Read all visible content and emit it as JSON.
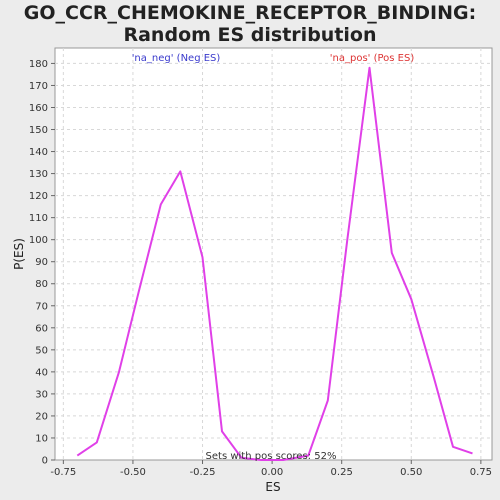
{
  "title": "GO_CCR_CHEMOKINE_RECEPTOR_BINDING: Random ES distribution",
  "chart_data": {
    "type": "line",
    "title": "GO_CCR_CHEMOKINE_RECEPTOR_BINDING: Random ES distribution",
    "xlabel": "ES",
    "ylabel": "P(ES)",
    "xlim": [
      -0.78,
      0.79
    ],
    "ylim": [
      0,
      187
    ],
    "xticks": [
      -0.75,
      -0.5,
      -0.25,
      0.0,
      0.25,
      0.5,
      0.75
    ],
    "xtick_labels": [
      "-0.75",
      "-0.50",
      "-0.25",
      "0.00",
      "0.25",
      "0.50",
      "0.75"
    ],
    "yticks": [
      0,
      10,
      20,
      30,
      40,
      50,
      60,
      70,
      80,
      90,
      100,
      110,
      120,
      130,
      140,
      150,
      160,
      170,
      180
    ],
    "grid": true,
    "series": [
      {
        "color": "#e040e8",
        "x": [
          -0.7,
          -0.63,
          -0.55,
          -0.48,
          -0.4,
          -0.33,
          -0.25,
          -0.18,
          -0.11,
          -0.04,
          0.04,
          0.13,
          0.2,
          0.27,
          0.35,
          0.43,
          0.5,
          0.58,
          0.65,
          0.72
        ],
        "y": [
          2,
          8,
          40,
          76,
          116,
          131,
          92,
          13,
          1,
          0,
          0,
          2,
          27,
          100,
          178,
          94,
          73,
          38,
          6,
          3
        ]
      }
    ],
    "annotations": {
      "neg": {
        "text": "'na_neg' (Neg ES)",
        "color": "#3a3acc"
      },
      "pos": {
        "text": "'na_pos' (Pos ES)",
        "color": "#dd3333"
      },
      "bottom": {
        "text": "Sets with pos scores: 52%",
        "color": "#333333"
      }
    }
  }
}
